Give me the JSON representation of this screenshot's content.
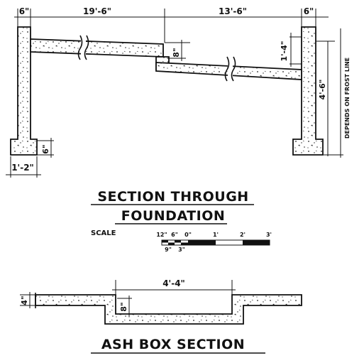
{
  "foundation": {
    "dims_top": [
      "6\"",
      "19'-6\"",
      "13'-6\"",
      "6\""
    ],
    "dim_slab_step": "8\"",
    "dim_right_step": "1'-4\"",
    "dim_right_height": "4'-6\"",
    "dim_footing_thickness": "6\"",
    "dim_footing_width": "1'-2\"",
    "note_frost": "DEPENDS ON FROST LINE"
  },
  "title_section": [
    "SECTION THROUGH",
    "FOUNDATION"
  ],
  "scale": {
    "label": "SCALE",
    "ticks_top": [
      "12\"",
      "6\"",
      "0\"",
      "1'",
      "2'",
      "3'"
    ],
    "ticks_bottom": [
      "9\"",
      "3\""
    ]
  },
  "ash_box": {
    "dim_width": "4'-4\"",
    "dim_depth": "8\"",
    "dim_slab": "4\"",
    "title": "ASH BOX SECTION"
  }
}
